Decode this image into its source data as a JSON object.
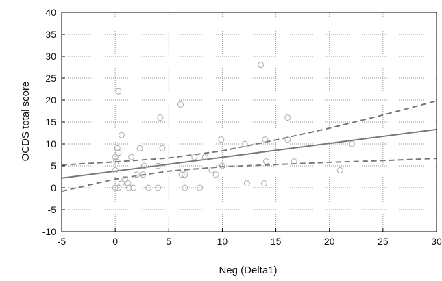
{
  "chart_data": {
    "type": "scatter",
    "title": "",
    "xlabel": "Neg (Delta1)",
    "ylabel": "OCDS total score",
    "xlim": [
      -5,
      30
    ],
    "ylim": [
      -10,
      40
    ],
    "x_ticks": [
      -5,
      0,
      5,
      10,
      15,
      20,
      25,
      30
    ],
    "y_ticks": [
      -10,
      -5,
      0,
      5,
      10,
      15,
      20,
      25,
      30,
      35,
      40
    ],
    "grid": "dotted",
    "legend": "none",
    "marker": "open-circle",
    "colors": {
      "points": "#aaaaaa",
      "fit": "#777777",
      "ci": "#777777",
      "frame": "#000000"
    },
    "points": [
      {
        "x": 0.3,
        "y": 22
      },
      {
        "x": 0.6,
        "y": 12
      },
      {
        "x": 0.2,
        "y": 9
      },
      {
        "x": 0.3,
        "y": 8
      },
      {
        "x": 0.0,
        "y": 7
      },
      {
        "x": 0.1,
        "y": 6
      },
      {
        "x": 0.0,
        "y": 4
      },
      {
        "x": 0.6,
        "y": 1
      },
      {
        "x": 0.9,
        "y": 2
      },
      {
        "x": 0.0,
        "y": 0
      },
      {
        "x": 0.3,
        "y": 0
      },
      {
        "x": 1.2,
        "y": 1
      },
      {
        "x": 1.3,
        "y": 0
      },
      {
        "x": 1.7,
        "y": 0
      },
      {
        "x": 1.5,
        "y": 7
      },
      {
        "x": 2.0,
        "y": 3
      },
      {
        "x": 2.3,
        "y": 9
      },
      {
        "x": 2.6,
        "y": 3
      },
      {
        "x": 2.7,
        "y": 5
      },
      {
        "x": 3.1,
        "y": 0
      },
      {
        "x": 4.0,
        "y": 0
      },
      {
        "x": 4.0,
        "y": 5
      },
      {
        "x": 4.2,
        "y": 16
      },
      {
        "x": 4.4,
        "y": 9
      },
      {
        "x": 6.1,
        "y": 19
      },
      {
        "x": 6.2,
        "y": 3
      },
      {
        "x": 6.5,
        "y": 3
      },
      {
        "x": 6.5,
        "y": 0
      },
      {
        "x": 7.4,
        "y": 7
      },
      {
        "x": 7.9,
        "y": 0
      },
      {
        "x": 8.4,
        "y": 7
      },
      {
        "x": 9.0,
        "y": 4
      },
      {
        "x": 9.4,
        "y": 3
      },
      {
        "x": 9.9,
        "y": 11
      },
      {
        "x": 10.0,
        "y": 5
      },
      {
        "x": 12.1,
        "y": 10
      },
      {
        "x": 12.3,
        "y": 1
      },
      {
        "x": 13.6,
        "y": 28
      },
      {
        "x": 13.9,
        "y": 1
      },
      {
        "x": 14.0,
        "y": 11
      },
      {
        "x": 14.1,
        "y": 6
      },
      {
        "x": 16.1,
        "y": 16
      },
      {
        "x": 16.1,
        "y": 11
      },
      {
        "x": 16.7,
        "y": 6
      },
      {
        "x": 21.0,
        "y": 4
      },
      {
        "x": 22.1,
        "y": 10
      }
    ],
    "fit_line": {
      "x": [
        -5,
        30
      ],
      "y": [
        2.2,
        13.3
      ]
    },
    "confidence_band": {
      "x": [
        -5,
        0,
        5,
        10,
        15,
        20,
        25,
        30
      ],
      "upper": [
        5.2,
        5.9,
        6.8,
        8.4,
        10.9,
        13.6,
        16.6,
        19.8
      ],
      "lower": [
        -0.8,
        2.0,
        3.8,
        4.8,
        5.3,
        5.8,
        6.2,
        6.7
      ]
    }
  }
}
